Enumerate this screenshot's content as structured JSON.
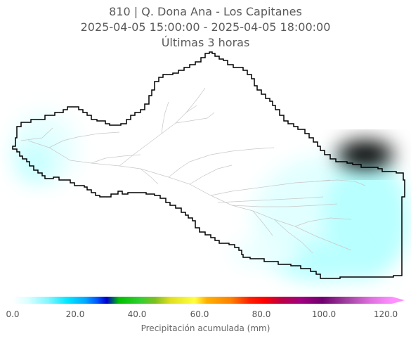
{
  "title": {
    "line1": "810 | Q. Dona Ana - Los Capitanes",
    "line2": "2025-04-05 15:00:00 - 2025-04-05 18:00:00",
    "line3": "Últimas 3 horas"
  },
  "colorbar": {
    "label": "Precipitación acumulada (mm)",
    "ticks": [
      "0.0",
      "20.0",
      "40.0",
      "60.0",
      "80.0",
      "100.0",
      "120.0"
    ],
    "range": [
      0,
      125
    ],
    "extend": "max",
    "stops": [
      {
        "v": 0,
        "c": "#ffffff"
      },
      {
        "v": 5,
        "c": "#d9ffff"
      },
      {
        "v": 12,
        "c": "#7ff5ff"
      },
      {
        "v": 18,
        "c": "#00e8ff"
      },
      {
        "v": 24,
        "c": "#00a8ff"
      },
      {
        "v": 28,
        "c": "#0050ff"
      },
      {
        "v": 31,
        "c": "#0000cc"
      },
      {
        "v": 35,
        "c": "#00c000"
      },
      {
        "v": 42,
        "c": "#30d030"
      },
      {
        "v": 47,
        "c": "#80c020"
      },
      {
        "v": 52,
        "c": "#e0e020"
      },
      {
        "v": 60,
        "c": "#ffff40"
      },
      {
        "v": 64,
        "c": "#ffb000"
      },
      {
        "v": 72,
        "c": "#ff8000"
      },
      {
        "v": 78,
        "c": "#ff2000"
      },
      {
        "v": 83,
        "c": "#ff0000"
      },
      {
        "v": 88,
        "c": "#c00040"
      },
      {
        "v": 95,
        "c": "#a00080"
      },
      {
        "v": 102,
        "c": "#700070"
      },
      {
        "v": 110,
        "c": "#a040a0"
      },
      {
        "v": 118,
        "c": "#e070e0"
      },
      {
        "v": 125,
        "c": "#ff90ff"
      }
    ]
  },
  "colors": {
    "boundary": "#000000",
    "rivers": "#c8c8c8",
    "precip_light": "#e6ffff",
    "precip_medium": "#b8ffff"
  }
}
